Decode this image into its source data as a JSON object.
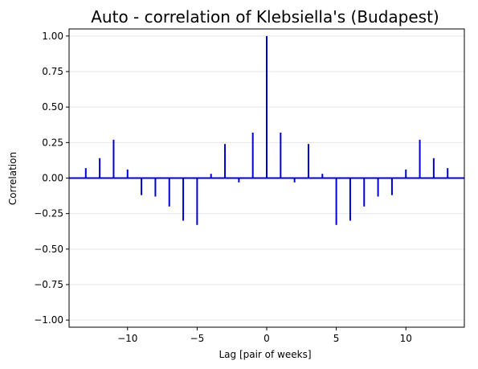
{
  "chart_data": {
    "type": "bar",
    "title": "Auto - correlation of Klebsiella's (Budapest)",
    "xlabel": "Lag [pair of weeks]",
    "ylabel": "Correlation",
    "xlim": [
      -14.2,
      14.2
    ],
    "ylim": [
      -1.05,
      1.05
    ],
    "xticks": [
      -10,
      -5,
      0,
      5,
      10
    ],
    "xtick_labels": [
      "−10",
      "−5",
      "0",
      "5",
      "10"
    ],
    "yticks": [
      -1.0,
      -0.75,
      -0.5,
      -0.25,
      0.0,
      0.25,
      0.5,
      0.75,
      1.0
    ],
    "ytick_labels": [
      "−1.00",
      "−0.75",
      "−0.50",
      "−0.25",
      "0.00",
      "0.25",
      "0.50",
      "0.75",
      "1.00"
    ],
    "grid": "horizontal",
    "bar_color": "#0000cd",
    "zero_line_color": "#0000cd",
    "grid_color": "#e6e6e6",
    "lags": [
      -13,
      -12,
      -11,
      -10,
      -9,
      -8,
      -7,
      -6,
      -5,
      -4,
      -3,
      -2,
      -1,
      0,
      1,
      2,
      3,
      4,
      5,
      6,
      7,
      8,
      9,
      10,
      11,
      12,
      13
    ],
    "values": [
      0.07,
      0.14,
      0.27,
      0.06,
      -0.12,
      -0.13,
      -0.2,
      -0.3,
      -0.33,
      0.03,
      0.24,
      -0.03,
      0.32,
      1.0,
      0.32,
      -0.03,
      0.24,
      0.03,
      -0.33,
      -0.3,
      -0.2,
      -0.13,
      -0.12,
      0.06,
      0.27,
      0.14,
      0.07
    ]
  }
}
